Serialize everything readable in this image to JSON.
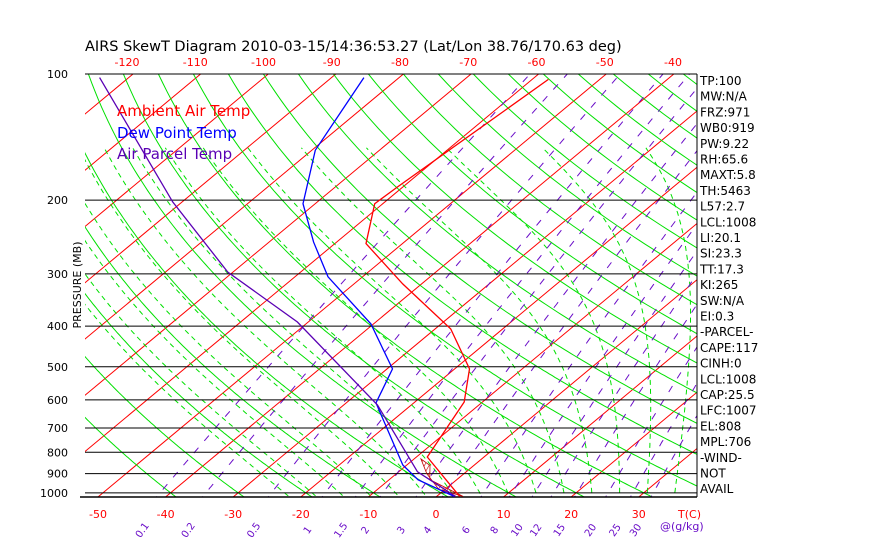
{
  "chart_data": {
    "type": "line",
    "subtype": "skew-t log-p",
    "title": "AIRS SkewT Diagram 2010-03-15/14:36:53.27 (Lat/Lon 38.76/170.63 deg)",
    "ylabel": "PRESSURE (MB)",
    "xlabel": "T(C)",
    "mixing_ratio_label": "@(g/kg)",
    "pressure_ticks": [
      100,
      200,
      300,
      400,
      500,
      600,
      700,
      800,
      900,
      1000
    ],
    "bottom_temp_ticks": [
      -50,
      -40,
      -30,
      -20,
      -10,
      0,
      10,
      20,
      30
    ],
    "top_temp_ticks": [
      -120,
      -110,
      -100,
      -90,
      -80,
      -70,
      -60,
      -50,
      -40
    ],
    "mixing_ratio_ticks": [
      "0.1",
      "0.2",
      "0.5",
      "1",
      "1.5",
      "2",
      "3",
      "4",
      "6",
      "8",
      "10",
      "12",
      "15",
      "20",
      "25",
      "30"
    ],
    "ylim": [
      1023,
      100
    ],
    "legend": [
      {
        "label": "Ambient Air Temp",
        "color": "#ff0000"
      },
      {
        "label": "Dew Point Temp",
        "color": "#0000ff"
      },
      {
        "label": "Air Parcel Temp",
        "color": "#5a00b4"
      }
    ],
    "series": [
      {
        "name": "Ambient Air Temp",
        "color": "#ff0000",
        "p": [
          1020,
          821,
          607,
          506,
          406,
          317,
          254,
          204,
          186,
          103
        ],
        "t": [
          3.4,
          -8.4,
          -12.7,
          -17.8,
          -27.7,
          -42.8,
          -55.4,
          -61.2,
          -60.8,
          -57.6
        ]
      },
      {
        "name": "Dew Point Temp",
        "color": "#0000ff",
        "p": [
          1020,
          931,
          858,
          610,
          506,
          395,
          305,
          252,
          204,
          152,
          102
        ],
        "t": [
          2.6,
          -5.7,
          -10.6,
          -25.6,
          -29.2,
          -40.4,
          -55.1,
          -63.4,
          -71.8,
          -79.5,
          -85.2
        ]
      },
      {
        "name": "Air Parcel Temp",
        "color": "#5a00b4",
        "p": [
          1020,
          891,
          617,
          391,
          297,
          202,
          102
        ],
        "t": [
          2.8,
          -7.2,
          -25.0,
          -51.6,
          -70.8,
          -91.4,
          -124.3
        ]
      }
    ]
  },
  "indices": [
    "TP:100",
    "MW:N/A",
    "FRZ:971",
    "WB0:919",
    "PW:9.22",
    "RH:65.6",
    "MAXT:5.8",
    "TH:5463",
    "L57:2.7",
    "LCL:1008",
    "LI:20.1",
    "SI:23.3",
    "TT:17.3",
    "KI:265",
    "SW:N/A",
    "EI:0.3",
    "-PARCEL-",
    "CAPE:117",
    "CINH:0",
    "LCL:1008",
    "CAP:25.5",
    "LFC:1007",
    "EL:808",
    "MPL:706",
    "-WIND-",
    "NOT",
    "AVAIL"
  ],
  "colors": {
    "isotherm": "#ff0000",
    "dry_adiabat": "#00e000",
    "moist_adiabat": "#00e000",
    "mixing_ratio": "#6a0dc8",
    "axis": "#000000"
  }
}
